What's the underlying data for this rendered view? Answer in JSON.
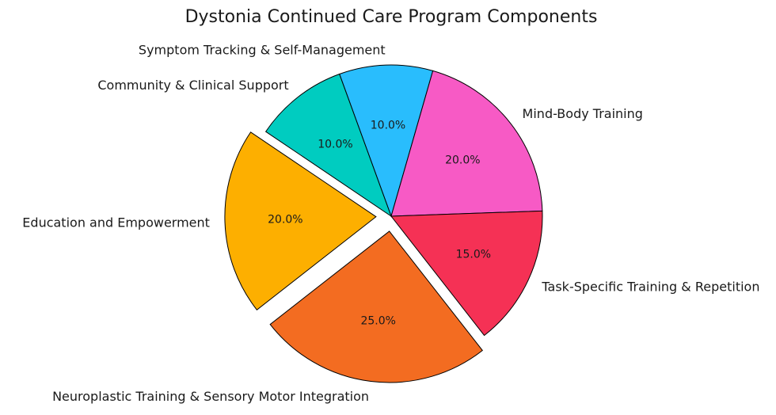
{
  "chart_data": {
    "type": "pie",
    "title": "Dystonia Continued Care Program Components",
    "categories": [
      "Symptom Tracking & Self-Management",
      "Mind-Body Training",
      "Task-Specific Training & Repetition",
      "Neuroplastic Training & Sensory Motor Integration",
      "Education and Empowerment",
      "Community & Clinical Support"
    ],
    "values": [
      10.0,
      20.0,
      15.0,
      25.0,
      20.0,
      10.0
    ],
    "value_labels": [
      "10.0%",
      "20.0%",
      "15.0%",
      "25.0%",
      "20.0%",
      "10.0%"
    ],
    "colors": [
      "#29BDFD",
      "#F75AC5",
      "#F53155",
      "#F36C21",
      "#FDAF00",
      "#00CCC0"
    ],
    "exploded": [
      false,
      false,
      false,
      true,
      true,
      false
    ],
    "start_angle_deg": 110,
    "direction": "clockwise",
    "legend": "none"
  }
}
